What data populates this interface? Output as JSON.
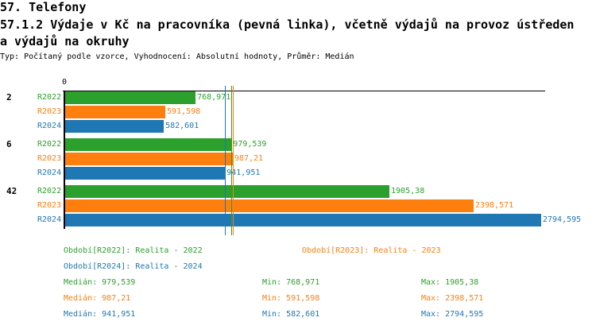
{
  "header": {
    "title": "57. Telefony",
    "subtitle_line1": "57.1.2 Výdaje v Kč na pracovníka (pevná linka), včetně výdajů na provoz ústředen",
    "subtitle_line2": "a výdajů na okruhy",
    "meta": "Typ: Počítaný podle vzorce, Vyhodnocení: Absolutní hodnoty, Průměr: Medián"
  },
  "chart_data": {
    "type": "bar",
    "orientation": "horizontal",
    "xlim": [
      0,
      2794.595
    ],
    "x_tick_labels": [
      "0"
    ],
    "categories": [
      "2",
      "6",
      "42"
    ],
    "series": [
      {
        "name": "R2022",
        "color": "#2ca02c",
        "values": [
          768.971,
          979.539,
          1905.38
        ],
        "labels": [
          "768,971",
          "979,539",
          "1905,38"
        ]
      },
      {
        "name": "R2023",
        "color": "#ff7f0e",
        "values": [
          591.598,
          987.21,
          2398.571
        ],
        "labels": [
          "591,598",
          "987,21",
          "2398,571"
        ]
      },
      {
        "name": "R2024",
        "color": "#1f77b4",
        "values": [
          582.601,
          941.951,
          2794.595
        ],
        "labels": [
          "582,601",
          "941,951",
          "2794,595"
        ]
      }
    ],
    "median_lines": [
      {
        "series": "R2022",
        "value": 979.539
      },
      {
        "series": "R2023",
        "value": 987.21
      },
      {
        "series": "R2024",
        "value": 941.951
      }
    ]
  },
  "legend": {
    "periods": [
      "Období[R2022]: Realita - 2022",
      "Období[R2023]: Realita - 2023",
      "Období[R2024]: Realita - 2024"
    ],
    "stats": [
      {
        "median": "Medián: 979,539",
        "min": "Min: 768,971",
        "max": "Max: 1905,38"
      },
      {
        "median": "Medián: 987,21",
        "min": "Min: 591,598",
        "max": "Max: 2398,571"
      },
      {
        "median": "Medián: 941,951",
        "min": "Min: 582,601",
        "max": "Max: 2794,595"
      }
    ]
  }
}
